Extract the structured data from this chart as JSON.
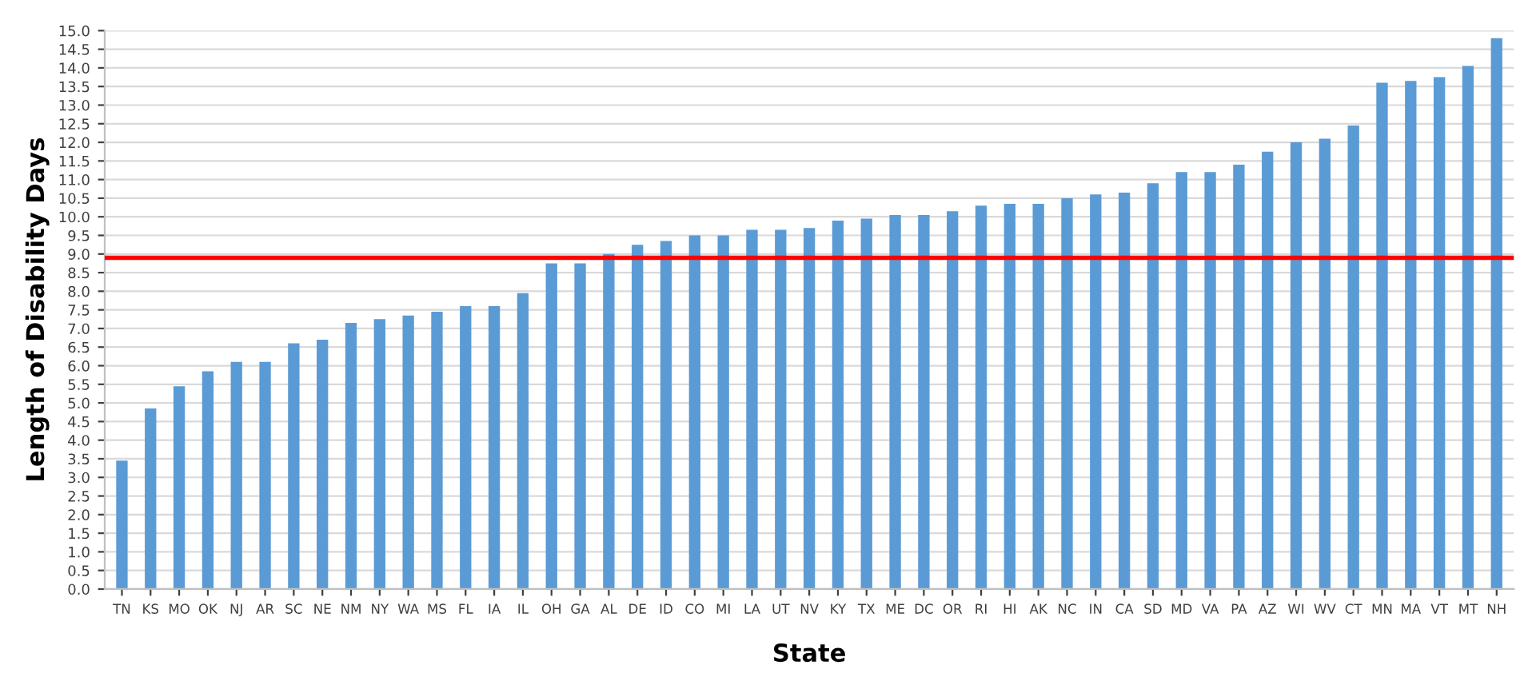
{
  "chart_data": {
    "type": "bar",
    "xlabel": "State",
    "ylabel": "Length of Disability Days",
    "categories": [
      "TN",
      "KS",
      "MO",
      "OK",
      "NJ",
      "AR",
      "SC",
      "NE",
      "NM",
      "NY",
      "WA",
      "MS",
      "FL",
      "IA",
      "IL",
      "OH",
      "GA",
      "AL",
      "DE",
      "ID",
      "CO",
      "MI",
      "LA",
      "UT",
      "NV",
      "KY",
      "TX",
      "ME",
      "DC",
      "OR",
      "RI",
      "HI",
      "AK",
      "NC",
      "IN",
      "CA",
      "SD",
      "MD",
      "VA",
      "PA",
      "AZ",
      "WI",
      "WV",
      "CT",
      "MN",
      "MA",
      "VT",
      "MT",
      "NH"
    ],
    "values": [
      3.45,
      4.85,
      5.45,
      5.85,
      6.1,
      6.1,
      6.6,
      6.7,
      7.15,
      7.25,
      7.35,
      7.45,
      7.6,
      7.6,
      7.95,
      8.75,
      8.75,
      9.0,
      9.25,
      9.35,
      9.5,
      9.5,
      9.65,
      9.65,
      9.7,
      9.9,
      9.95,
      10.05,
      10.05,
      10.15,
      10.3,
      10.35,
      10.35,
      10.5,
      10.6,
      10.65,
      10.9,
      11.2,
      11.2,
      11.4,
      11.75,
      12.0,
      12.1,
      12.45,
      13.6,
      13.65,
      13.75,
      14.05,
      14.8
    ],
    "color": "#5b9bd5",
    "ylim": [
      0,
      15
    ],
    "yticks": [
      {
        "value": 0,
        "label": "0.0"
      },
      {
        "value": 0.5,
        "label": "0.5"
      },
      {
        "value": 1,
        "label": "1.0"
      },
      {
        "value": 1.5,
        "label": "1.5"
      },
      {
        "value": 2,
        "label": "2.0"
      },
      {
        "value": 2.5,
        "label": "2.5"
      },
      {
        "value": 3,
        "label": "3.0"
      },
      {
        "value": 3.5,
        "label": "3.5"
      },
      {
        "value": 4,
        "label": "4.0"
      },
      {
        "value": 4.5,
        "label": "4.5"
      },
      {
        "value": 5,
        "label": "5.0"
      },
      {
        "value": 5.5,
        "label": "5.5"
      },
      {
        "value": 6,
        "label": "6.0"
      },
      {
        "value": 6.5,
        "label": "6.5"
      },
      {
        "value": 7,
        "label": "7.0"
      },
      {
        "value": 7.5,
        "label": "7.5"
      },
      {
        "value": 8,
        "label": "8.0"
      },
      {
        "value": 8.5,
        "label": "8.5"
      },
      {
        "value": 9,
        "label": "9.0"
      },
      {
        "value": 9.5,
        "label": "9.5"
      },
      {
        "value": 10,
        "label": "10.0"
      },
      {
        "value": 10.5,
        "label": "10.5"
      },
      {
        "value": 11,
        "label": "11.0"
      },
      {
        "value": 11.5,
        "label": "11.5"
      },
      {
        "value": 12,
        "label": "12.0"
      },
      {
        "value": 12.5,
        "label": "12.5"
      },
      {
        "value": 13,
        "label": "13.0"
      },
      {
        "value": 13.5,
        "label": "13.5"
      },
      {
        "value": 14,
        "label": "14.0"
      },
      {
        "value": 14.5,
        "label": "14.5"
      },
      {
        "value": 15,
        "label": "15.0"
      }
    ],
    "grid": "y",
    "ref_lines": [
      {
        "axis": "y",
        "value": 8.9,
        "color": "#ff0000"
      }
    ]
  }
}
